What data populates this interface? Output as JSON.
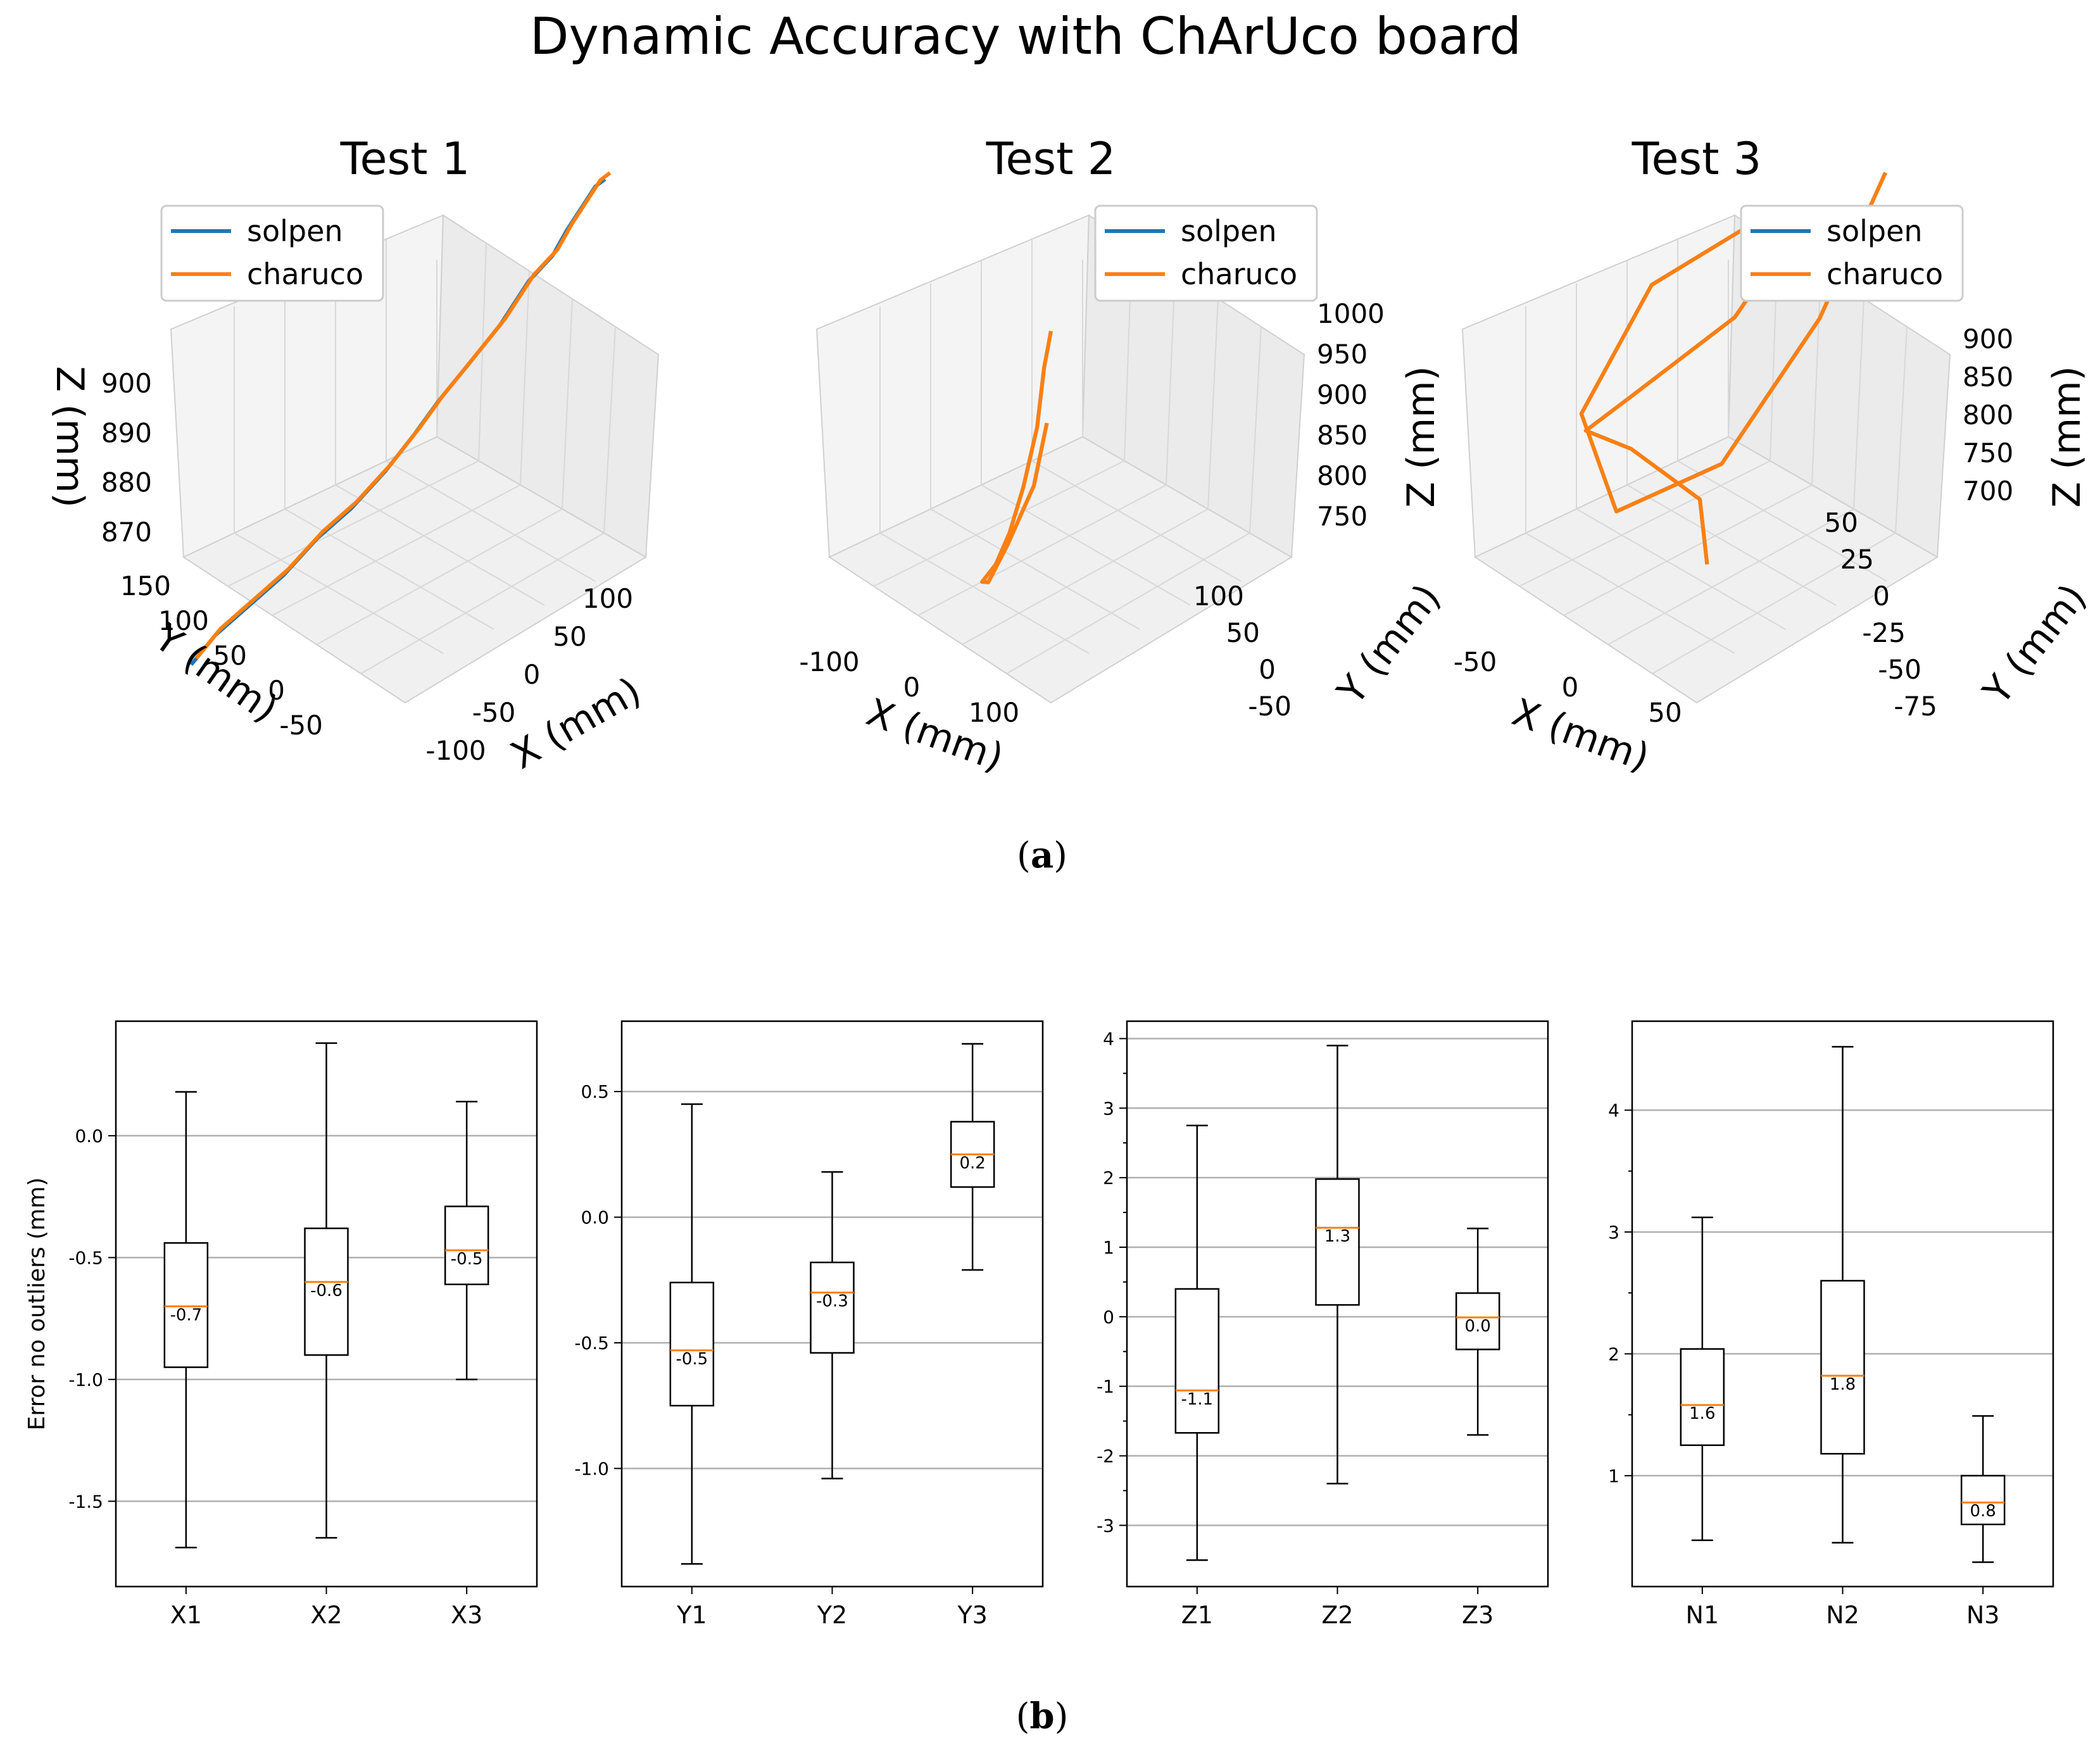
{
  "figure": {
    "title": "Dynamic Accuracy with ChArUco board",
    "caption_a": "(a)",
    "caption_b": "(b)",
    "caption_a_letter": "a",
    "caption_b_letter": "b"
  },
  "colors": {
    "solpen": "#1f77b4",
    "charuco": "#ff7f0e",
    "median": "#ff7f0e",
    "grid": "#b0b0b0",
    "box": "#000000",
    "pane": "#f2f2f2"
  },
  "legend": [
    "solpen",
    "charuco"
  ],
  "chart_data": [
    {
      "type": "line3d",
      "title": "Test 1",
      "xlabel": "X (mm)",
      "ylabel": "Y (mm)",
      "zlabel": "Z (mm)",
      "xticks": [
        "-100",
        "-50",
        "0",
        "50",
        "100"
      ],
      "yticks": [
        "-50",
        "0",
        "50",
        "100",
        "150"
      ],
      "zticks": [
        "870",
        "880",
        "890",
        "900"
      ],
      "series": [
        {
          "name": "solpen",
          "points": [
            [
              -100,
              -60,
              871
            ],
            [
              -95,
              -40,
              873
            ],
            [
              -90,
              -10,
              874
            ],
            [
              -85,
              20,
              875
            ],
            [
              -80,
              50,
              877
            ],
            [
              -75,
              80,
              878
            ],
            [
              -70,
              110,
              880
            ],
            [
              -60,
              130,
              883
            ],
            [
              -40,
              135,
              887
            ],
            [
              -10,
              138,
              892
            ],
            [
              20,
              140,
              897
            ],
            [
              50,
              140,
              903
            ],
            [
              70,
              145,
              906
            ],
            [
              80,
              150,
              909
            ],
            [
              90,
              150,
              911
            ],
            [
              100,
              150,
              913
            ],
            [
              110,
              150,
              915
            ],
            [
              120,
              150,
              916
            ]
          ]
        },
        {
          "name": "charuco",
          "points": [
            [
              -100,
              -60,
              871
            ],
            [
              -95,
              -40,
              873
            ],
            [
              -90,
              -10,
              874
            ],
            [
              -85,
              20,
              875
            ],
            [
              -80,
              50,
              877
            ],
            [
              -75,
              80,
              878
            ],
            [
              -70,
              110,
              880
            ],
            [
              -60,
              130,
              883
            ],
            [
              -40,
              135,
              887
            ],
            [
              -10,
              138,
              892
            ],
            [
              20,
              140,
              897
            ],
            [
              50,
              140,
              903
            ],
            [
              70,
              145,
              906
            ],
            [
              80,
              150,
              909
            ],
            [
              90,
              150,
              911
            ],
            [
              100,
              150,
              913
            ],
            [
              110,
              150,
              915
            ],
            [
              120,
              150,
              916
            ]
          ]
        }
      ]
    },
    {
      "type": "line3d",
      "title": "Test 2",
      "xlabel": "X (mm)",
      "ylabel": "Y (mm)",
      "zlabel": "Z (mm)",
      "xticks": [
        "-100",
        "0",
        "100"
      ],
      "yticks": [
        "-50",
        "0",
        "50",
        "100"
      ],
      "zticks": [
        "750",
        "800",
        "850",
        "900",
        "950",
        "1000"
      ],
      "series": [
        {
          "name": "solpen",
          "points": [
            [
              -120,
              100,
              820
            ],
            [
              -100,
              80,
              790
            ],
            [
              -80,
              50,
              770
            ],
            [
              -50,
              20,
              765
            ],
            [
              -20,
              0,
              780
            ],
            [
              20,
              -10,
              800
            ],
            [
              60,
              -20,
              830
            ],
            [
              100,
              -30,
              870
            ],
            [
              140,
              -40,
              920
            ],
            [
              170,
              -50,
              970
            ],
            [
              190,
              -55,
              1000
            ]
          ]
        },
        {
          "name": "charuco",
          "points": [
            [
              -120,
              100,
              820
            ],
            [
              -100,
              80,
              790
            ],
            [
              -80,
              50,
              770
            ],
            [
              -50,
              20,
              765
            ],
            [
              -20,
              0,
              780
            ],
            [
              20,
              -10,
              800
            ],
            [
              60,
              -20,
              830
            ],
            [
              100,
              -30,
              870
            ],
            [
              140,
              -40,
              920
            ],
            [
              170,
              -50,
              970
            ],
            [
              190,
              -55,
              1000
            ]
          ]
        }
      ]
    },
    {
      "type": "line3d",
      "title": "Test 3",
      "xlabel": "X (mm)",
      "ylabel": "Y (mm)",
      "zlabel": "Z (mm)",
      "xticks": [
        "-50",
        "0",
        "50"
      ],
      "yticks": [
        "-75",
        "-50",
        "-25",
        "0",
        "25",
        "50"
      ],
      "zticks": [
        "700",
        "750",
        "800",
        "850",
        "900"
      ],
      "series": [
        {
          "name": "solpen",
          "points": [
            [
              0,
              0,
              700
            ],
            [
              -30,
              20,
              720
            ],
            [
              -60,
              10,
              760
            ],
            [
              -50,
              -20,
              800
            ],
            [
              -10,
              -30,
              830
            ],
            [
              30,
              -10,
              860
            ],
            [
              20,
              30,
              880
            ],
            [
              -20,
              40,
              870
            ],
            [
              -60,
              20,
              850
            ],
            [
              -40,
              -30,
              820
            ],
            [
              20,
              -60,
              790
            ],
            [
              60,
              -40,
              800
            ],
            [
              70,
              0,
              850
            ],
            [
              60,
              40,
              900
            ]
          ]
        },
        {
          "name": "charuco",
          "points": [
            [
              0,
              0,
              700
            ],
            [
              -30,
              20,
              720
            ],
            [
              -60,
              10,
              760
            ],
            [
              -50,
              -20,
              800
            ],
            [
              -10,
              -30,
              830
            ],
            [
              30,
              -10,
              860
            ],
            [
              20,
              30,
              880
            ],
            [
              -20,
              40,
              870
            ],
            [
              -60,
              20,
              850
            ],
            [
              -40,
              -30,
              820
            ],
            [
              20,
              -60,
              790
            ],
            [
              60,
              -40,
              800
            ],
            [
              70,
              0,
              850
            ],
            [
              60,
              40,
              900
            ]
          ]
        }
      ]
    },
    {
      "type": "boxplot",
      "ylabel": "Error no outliers (mm)",
      "ylim": [
        -1.85,
        0.47
      ],
      "yticks": [
        "-1.5",
        "-1.0",
        "-0.5",
        "0.0"
      ],
      "ytick_values": [
        -1.5,
        -1.0,
        -0.5,
        0.0
      ],
      "minor_ticks": [],
      "categories": [
        "X1",
        "X2",
        "X3"
      ],
      "boxes": [
        {
          "whislo": -1.69,
          "q1": -0.95,
          "med": -0.7,
          "q3": -0.44,
          "whishi": 0.18,
          "label": "-0.7"
        },
        {
          "whislo": -1.65,
          "q1": -0.9,
          "med": -0.6,
          "q3": -0.38,
          "whishi": 0.38,
          "label": "-0.6"
        },
        {
          "whislo": -1.0,
          "q1": -0.61,
          "med": -0.47,
          "q3": -0.29,
          "whishi": 0.14,
          "label": "-0.5"
        }
      ]
    },
    {
      "type": "boxplot",
      "ylabel": "",
      "ylim": [
        -1.47,
        0.78
      ],
      "yticks": [
        "-1.0",
        "-0.5",
        "0.0",
        "0.5"
      ],
      "ytick_values": [
        -1.0,
        -0.5,
        0.0,
        0.5
      ],
      "minor_ticks": [],
      "categories": [
        "Y1",
        "Y2",
        "Y3"
      ],
      "boxes": [
        {
          "whislo": -1.38,
          "q1": -0.75,
          "med": -0.53,
          "q3": -0.26,
          "whishi": 0.45,
          "label": "-0.5"
        },
        {
          "whislo": -1.04,
          "q1": -0.54,
          "med": -0.3,
          "q3": -0.18,
          "whishi": 0.18,
          "label": "-0.3"
        },
        {
          "whislo": -0.21,
          "q1": 0.12,
          "med": 0.25,
          "q3": 0.38,
          "whishi": 0.69,
          "label": "0.2"
        }
      ]
    },
    {
      "type": "boxplot",
      "ylabel": "",
      "ylim": [
        -3.88,
        4.25
      ],
      "yticks": [
        "-3",
        "-2",
        "-1",
        "0",
        "1",
        "2",
        "3",
        "4"
      ],
      "ytick_values": [
        -3,
        -2,
        -1,
        0,
        1,
        2,
        3,
        4
      ],
      "minor_ticks": [
        -2.5,
        -1.5,
        -0.5,
        0.5,
        1.5,
        2.5,
        3.5
      ],
      "categories": [
        "Z1",
        "Z2",
        "Z3"
      ],
      "boxes": [
        {
          "whislo": -3.5,
          "q1": -1.67,
          "med": -1.06,
          "q3": 0.4,
          "whishi": 2.75,
          "label": "-1.1"
        },
        {
          "whislo": -2.4,
          "q1": 0.17,
          "med": 1.28,
          "q3": 1.98,
          "whishi": 3.9,
          "label": "1.3"
        },
        {
          "whislo": -1.7,
          "q1": -0.47,
          "med": -0.01,
          "q3": 0.34,
          "whishi": 1.27,
          "label": "0.0"
        }
      ]
    },
    {
      "type": "boxplot",
      "ylabel": "",
      "ylim": [
        0.09,
        4.73
      ],
      "yticks": [
        "1",
        "2",
        "3",
        "4"
      ],
      "ytick_values": [
        1,
        2,
        3,
        4
      ],
      "minor_ticks": [
        1.5,
        2.5,
        3.5
      ],
      "categories": [
        "N1",
        "N2",
        "N3"
      ],
      "boxes": [
        {
          "whislo": 0.47,
          "q1": 1.25,
          "med": 1.58,
          "q3": 2.04,
          "whishi": 3.12,
          "label": "1.6"
        },
        {
          "whislo": 0.45,
          "q1": 1.18,
          "med": 1.82,
          "q3": 2.6,
          "whishi": 4.52,
          "label": "1.8"
        },
        {
          "whislo": 0.29,
          "q1": 0.6,
          "med": 0.78,
          "q3": 1.0,
          "whishi": 1.49,
          "label": "0.8"
        }
      ]
    }
  ]
}
